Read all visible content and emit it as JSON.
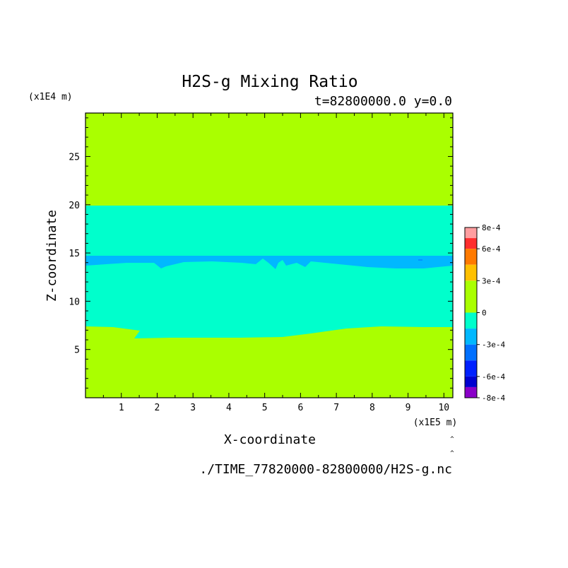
{
  "chart_data": {
    "type": "heatmap",
    "title": "H2S-g Mixing Ratio",
    "subtitle": "t=82800000.0 y=0.0",
    "xlabel": "X-coordinate",
    "ylabel": "Z-coordinate",
    "x_unit": "(x1E5 m)",
    "y_unit": "(x1E4 m)",
    "xlim": [
      0,
      10.25
    ],
    "ylim": [
      0,
      29.5
    ],
    "x_ticks": [
      "1",
      "2",
      "3",
      "4",
      "5",
      "6",
      "7",
      "8",
      "9",
      "10"
    ],
    "y_ticks": [
      "5",
      "10",
      "15",
      "20",
      "25"
    ],
    "grid": false,
    "footer": "./TIME_77820000-82800000/H2S-g.nc",
    "colorbar": {
      "tick_labels": [
        "8e-4",
        "6e-4",
        "3e-4",
        "0",
        "-3e-4",
        "-6e-4",
        "-8e-4"
      ],
      "bands": [
        {
          "from": 0.0007,
          "to": 0.0008,
          "color": "#ff9ea0"
        },
        {
          "from": 0.0006,
          "to": 0.0007,
          "color": "#ff2e2e"
        },
        {
          "from": 0.00045,
          "to": 0.0006,
          "color": "#ff7a00"
        },
        {
          "from": 0.0003,
          "to": 0.00045,
          "color": "#ffc000"
        },
        {
          "from": 0,
          "to": 0.0003,
          "color": "#aaff00"
        },
        {
          "from": -0.00015,
          "to": 0,
          "color": "#00ffcc"
        },
        {
          "from": -0.0003,
          "to": -0.00015,
          "color": "#00b8ff"
        },
        {
          "from": -0.00045,
          "to": -0.0003,
          "color": "#0070ff"
        },
        {
          "from": -0.0006,
          "to": -0.00045,
          "color": "#0020ff"
        },
        {
          "from": -0.0007,
          "to": -0.0006,
          "color": "#0000d0"
        },
        {
          "from": -0.0008,
          "to": -0.0007,
          "color": "#8a00c8"
        }
      ]
    },
    "regions": [
      {
        "name": "upper",
        "z_from": 20.2,
        "z_to": 29.5,
        "color": "#aaff00",
        "value_range": "0 to 3e-4"
      },
      {
        "name": "middle",
        "z_from": 7.5,
        "z_to": 20.2,
        "color": "#00ffcc",
        "value_range": "-1.5e-4 to 0"
      },
      {
        "name": "thin band",
        "z_from": 13.8,
        "z_to": 15.0,
        "color": "#00b8ff",
        "value_range": "-3e-4 to -1.5e-4"
      },
      {
        "name": "lower",
        "z_from": 0,
        "z_to": 7.5,
        "color": "#aaff00",
        "value_range": "0 to 3e-4"
      }
    ]
  }
}
